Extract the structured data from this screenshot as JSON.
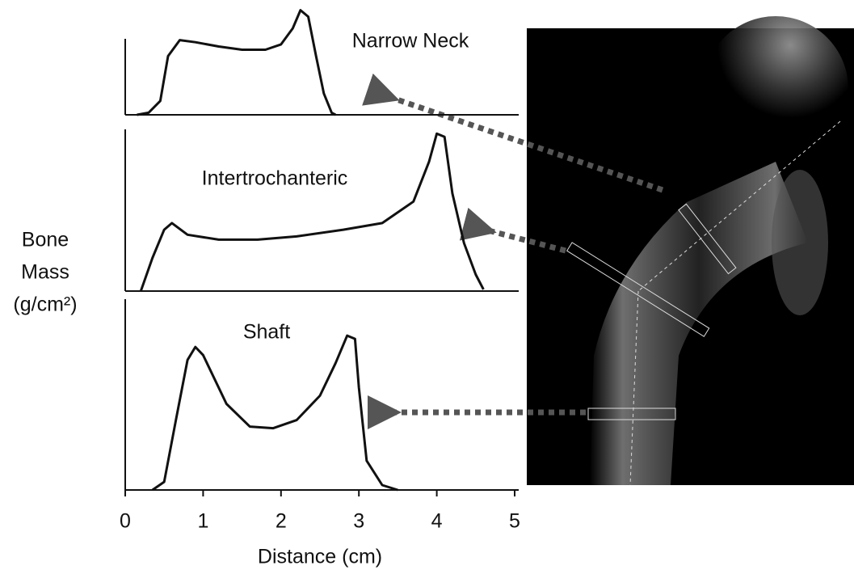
{
  "chart_data": [
    {
      "type": "line",
      "title": "Narrow Neck",
      "color": "#111111",
      "xlim": [
        0,
        5
      ],
      "ylim": [
        0,
        1
      ],
      "x": [
        0.15,
        0.3,
        0.45,
        0.55,
        0.7,
        0.9,
        1.2,
        1.5,
        1.8,
        2.0,
        2.15,
        2.25,
        2.35,
        2.45,
        2.55,
        2.65,
        2.7
      ],
      "values": [
        0,
        0.02,
        0.13,
        0.55,
        0.7,
        0.68,
        0.64,
        0.61,
        0.61,
        0.66,
        0.81,
        0.98,
        0.92,
        0.55,
        0.2,
        0.02,
        0
      ]
    },
    {
      "type": "line",
      "title": "Intertrochanteric",
      "color": "#111111",
      "ylabel": [
        "Bone",
        "Mass",
        "(g/cm²)"
      ],
      "xlim": [
        0,
        5
      ],
      "ylim": [
        0,
        1
      ],
      "x": [
        0.2,
        0.35,
        0.5,
        0.6,
        0.8,
        1.2,
        1.7,
        2.2,
        2.8,
        3.3,
        3.7,
        3.9,
        4.0,
        4.1,
        4.2,
        4.35,
        4.5,
        4.6
      ],
      "values": [
        0,
        0.2,
        0.37,
        0.41,
        0.34,
        0.31,
        0.31,
        0.33,
        0.37,
        0.41,
        0.54,
        0.78,
        0.95,
        0.93,
        0.59,
        0.29,
        0.1,
        0.01
      ]
    },
    {
      "type": "line",
      "title": "Shaft",
      "color": "#111111",
      "xlabel": "Distance (cm)",
      "xlim": [
        0,
        5
      ],
      "ylim": [
        0,
        1
      ],
      "xticks": [
        0,
        1,
        2,
        3,
        4,
        5
      ],
      "x": [
        0.35,
        0.5,
        0.65,
        0.8,
        0.9,
        1.0,
        1.3,
        1.6,
        1.9,
        2.2,
        2.5,
        2.7,
        2.85,
        2.95,
        3.0,
        3.1,
        3.3,
        3.5
      ],
      "values": [
        0,
        0.05,
        0.43,
        0.8,
        0.88,
        0.83,
        0.53,
        0.39,
        0.38,
        0.43,
        0.58,
        0.78,
        0.95,
        0.93,
        0.63,
        0.18,
        0.03,
        0
      ]
    }
  ]
}
